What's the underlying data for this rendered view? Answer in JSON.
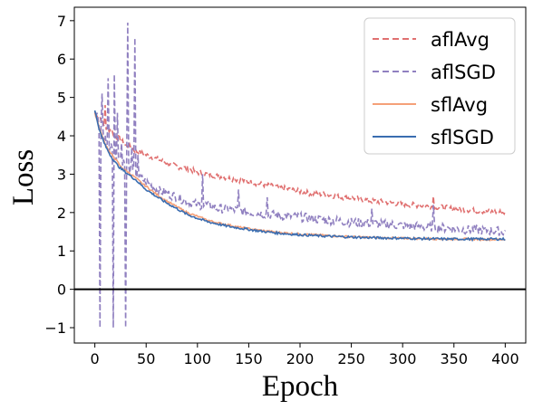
{
  "chart_data": {
    "type": "line",
    "xlabel": "Epoch",
    "ylabel": "Loss",
    "xlim": [
      -20,
      420
    ],
    "ylim": [
      -1.4,
      7.35
    ],
    "xticks": [
      0,
      50,
      100,
      150,
      200,
      250,
      300,
      350,
      400
    ],
    "yticks": [
      -1,
      0,
      1,
      2,
      3,
      4,
      5,
      6,
      7
    ],
    "grid": false,
    "legend_position": "top-right",
    "reference_line": {
      "y": 0,
      "color": "#000000"
    },
    "series": [
      {
        "name": "aflAvg",
        "style": "dashed",
        "color": "#e07070",
        "x": [
          0,
          5,
          10,
          15,
          20,
          25,
          30,
          35,
          40,
          45,
          50,
          60,
          70,
          80,
          90,
          100,
          110,
          120,
          130,
          140,
          150,
          160,
          170,
          180,
          190,
          200,
          210,
          220,
          230,
          240,
          250,
          260,
          270,
          280,
          290,
          300,
          310,
          320,
          330,
          340,
          350,
          360,
          370,
          380,
          390,
          400
        ],
        "values": [
          4.6,
          4.5,
          4.2,
          4.15,
          4.0,
          3.9,
          3.75,
          3.7,
          3.6,
          3.55,
          3.5,
          3.4,
          3.3,
          3.2,
          3.15,
          3.05,
          3.0,
          2.95,
          2.9,
          2.85,
          2.8,
          2.75,
          2.7,
          2.65,
          2.6,
          2.55,
          2.5,
          2.48,
          2.45,
          2.4,
          2.38,
          2.35,
          2.3,
          2.28,
          2.25,
          2.22,
          2.2,
          2.18,
          2.15,
          2.13,
          2.1,
          2.08,
          2.05,
          2.03,
          2.02,
          2.0
        ],
        "spikes": [
          [
            10,
            4.8
          ],
          [
            105,
            2.95
          ],
          [
            120,
            2.95
          ],
          [
            330,
            2.42
          ]
        ]
      },
      {
        "name": "aflSGD",
        "style": "dashed",
        "color": "#9080c0",
        "x": [
          0,
          5,
          10,
          15,
          20,
          25,
          30,
          35,
          40,
          45,
          50,
          60,
          70,
          80,
          90,
          100,
          110,
          120,
          130,
          140,
          150,
          160,
          170,
          180,
          190,
          200,
          210,
          220,
          230,
          240,
          250,
          260,
          270,
          280,
          290,
          300,
          310,
          320,
          330,
          340,
          350,
          360,
          370,
          380,
          390,
          400
        ],
        "values": [
          4.6,
          4.3,
          3.9,
          3.7,
          3.5,
          3.4,
          3.25,
          3.1,
          3.0,
          2.9,
          2.8,
          2.6,
          2.5,
          2.4,
          2.3,
          2.2,
          2.2,
          2.1,
          2.1,
          2.05,
          2.0,
          1.98,
          1.95,
          1.92,
          1.9,
          1.88,
          1.85,
          1.82,
          1.8,
          1.78,
          1.75,
          1.73,
          1.72,
          1.7,
          1.68,
          1.66,
          1.65,
          1.63,
          1.62,
          1.6,
          1.58,
          1.56,
          1.55,
          1.53,
          1.52,
          1.5
        ],
        "spikes": [
          [
            2,
            4.6
          ],
          [
            5,
            -1.0
          ],
          [
            7,
            5.1
          ],
          [
            10,
            4.0
          ],
          [
            13,
            5.5
          ],
          [
            16,
            3.8
          ],
          [
            18,
            -1.0
          ],
          [
            19,
            5.6
          ],
          [
            22,
            4.6
          ],
          [
            26,
            3.8
          ],
          [
            30,
            -1.0
          ],
          [
            32,
            6.95
          ],
          [
            36,
            3.7
          ],
          [
            39,
            6.55
          ],
          [
            42,
            3.5
          ],
          [
            105,
            3.0
          ],
          [
            140,
            2.6
          ],
          [
            168,
            2.4
          ],
          [
            270,
            2.1
          ],
          [
            330,
            2.2
          ]
        ]
      },
      {
        "name": "sflAvg",
        "style": "solid",
        "color": "#f5a078",
        "x": [
          0,
          5,
          10,
          15,
          20,
          25,
          30,
          35,
          40,
          45,
          50,
          60,
          70,
          80,
          90,
          100,
          110,
          120,
          130,
          140,
          150,
          160,
          170,
          180,
          190,
          200,
          220,
          240,
          260,
          280,
          300,
          320,
          340,
          360,
          380,
          400
        ],
        "values": [
          4.6,
          4.15,
          3.8,
          3.55,
          3.4,
          3.2,
          3.1,
          3.0,
          2.9,
          2.78,
          2.68,
          2.48,
          2.3,
          2.15,
          2.0,
          1.9,
          1.8,
          1.73,
          1.68,
          1.62,
          1.58,
          1.54,
          1.51,
          1.48,
          1.46,
          1.44,
          1.41,
          1.38,
          1.36,
          1.34,
          1.33,
          1.32,
          1.31,
          1.31,
          1.3,
          1.3
        ]
      },
      {
        "name": "sflSGD",
        "style": "solid",
        "color": "#3a6db0",
        "x": [
          0,
          5,
          10,
          15,
          20,
          25,
          30,
          35,
          40,
          45,
          50,
          60,
          70,
          80,
          90,
          100,
          110,
          120,
          130,
          140,
          150,
          160,
          170,
          180,
          190,
          200,
          220,
          240,
          260,
          280,
          300,
          320,
          340,
          360,
          380,
          400
        ],
        "values": [
          4.65,
          4.1,
          3.75,
          3.5,
          3.3,
          3.15,
          3.05,
          2.95,
          2.85,
          2.72,
          2.6,
          2.42,
          2.25,
          2.1,
          1.95,
          1.85,
          1.76,
          1.7,
          1.64,
          1.6,
          1.56,
          1.52,
          1.49,
          1.46,
          1.44,
          1.42,
          1.39,
          1.37,
          1.35,
          1.34,
          1.33,
          1.32,
          1.31,
          1.31,
          1.31,
          1.31
        ]
      }
    ]
  }
}
